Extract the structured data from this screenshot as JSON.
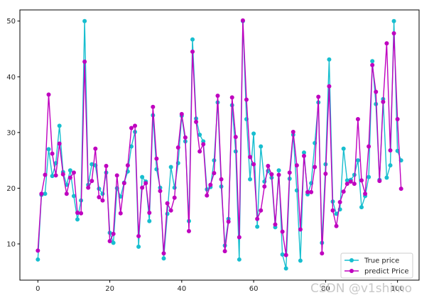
{
  "chart_data": {
    "type": "line",
    "title": "",
    "xlabel": "",
    "ylabel": "",
    "xlim": [
      -5,
      106
    ],
    "ylim": [
      3.5,
      52
    ],
    "xticks": [
      0,
      20,
      40,
      60,
      80,
      100
    ],
    "yticks": [
      10,
      20,
      30,
      40,
      50
    ],
    "grid": false,
    "legend_position": "lower-right",
    "series": [
      {
        "name": "True price",
        "color": "#17becf",
        "values": [
          7.2,
          18.8,
          19.0,
          27.0,
          22.2,
          24.5,
          31.2,
          22.9,
          20.6,
          23.2,
          18.6,
          14.4,
          17.8,
          50.0,
          20.6,
          24.3,
          24.1,
          19.9,
          19.0,
          22.8,
          12.0,
          10.2,
          20.0,
          18.5,
          21.0,
          23.0,
          27.5,
          30.1,
          9.5,
          22.0,
          21.2,
          14.1,
          33.1,
          23.4,
          20.1,
          7.4,
          15.4,
          23.8,
          20.1,
          24.5,
          33.0,
          28.4,
          14.1,
          46.7,
          32.5,
          29.6,
          28.4,
          19.8,
          20.2,
          25.0,
          35.4,
          20.3,
          9.7,
          14.5,
          34.9,
          26.6,
          7.2,
          50.0,
          32.4,
          21.6,
          29.8,
          13.1,
          27.5,
          21.2,
          23.1,
          21.9,
          13.0,
          23.2,
          8.1,
          5.6,
          21.7,
          29.6,
          19.6,
          7.0,
          26.4,
          18.9,
          20.9,
          28.1,
          35.4,
          10.2,
          24.3,
          43.1,
          17.6,
          15.4,
          16.2,
          27.1,
          21.4,
          21.5,
          22.4,
          25.0,
          16.6,
          18.6,
          22.0,
          42.8,
          35.1,
          21.5,
          36.0,
          21.9,
          24.1,
          50.0,
          26.7,
          25.0
        ]
      },
      {
        "name": "predict Price",
        "color": "#bf00bf",
        "values": [
          8.8,
          19.0,
          22.4,
          36.8,
          26.2,
          22.3,
          28.0,
          22.5,
          19.0,
          21.9,
          22.8,
          15.6,
          15.5,
          42.7,
          20.1,
          21.3,
          27.1,
          18.4,
          17.8,
          24.0,
          10.5,
          11.8,
          22.3,
          15.5,
          20.9,
          24.1,
          30.8,
          31.2,
          11.4,
          20.1,
          20.9,
          15.6,
          34.6,
          25.3,
          19.5,
          8.3,
          17.3,
          16.0,
          18.3,
          27.3,
          33.3,
          29.1,
          12.3,
          44.5,
          31.9,
          26.6,
          27.9,
          18.7,
          20.6,
          22.7,
          36.6,
          21.6,
          8.7,
          14.0,
          36.3,
          29.2,
          11.2,
          50.1,
          35.9,
          25.6,
          24.3,
          14.5,
          16.0,
          20.3,
          24.0,
          22.5,
          13.5,
          22.4,
          12.2,
          8.0,
          22.8,
          30.1,
          24.1,
          12.6,
          25.8,
          19.3,
          19.3,
          23.8,
          36.4,
          8.3,
          22.6,
          38.3,
          16.0,
          13.2,
          17.5,
          19.4,
          20.8,
          21.2,
          20.8,
          32.4,
          21.4,
          19.0,
          27.5,
          42.1,
          37.3,
          21.3,
          35.5,
          46.0,
          26.8,
          47.8,
          32.4,
          19.9
        ]
      }
    ]
  },
  "watermark": "CSDN @v1shimo"
}
